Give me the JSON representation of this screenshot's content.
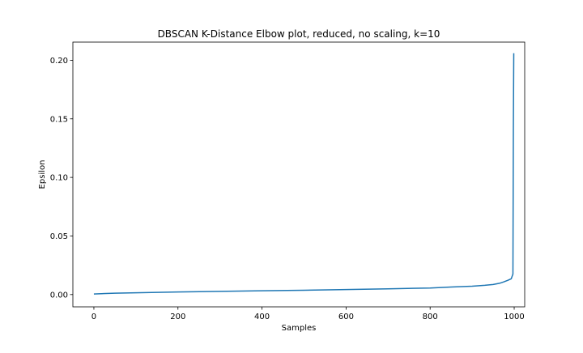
{
  "chart_data": {
    "type": "line",
    "title": "DBSCAN K-Distance Elbow plot, reduced, no scaling, k=10",
    "xlabel": "Samples",
    "ylabel": "Epsilon",
    "xlim": [
      -50,
      1025
    ],
    "ylim": [
      -0.0105,
      0.2155
    ],
    "xticks": [
      0,
      200,
      400,
      600,
      800,
      1000
    ],
    "xtick_labels": [
      "0",
      "200",
      "400",
      "600",
      "800",
      "1000"
    ],
    "yticks": [
      0.0,
      0.05,
      0.1,
      0.15,
      0.2
    ],
    "ytick_labels": [
      "0.00",
      "0.05",
      "0.10",
      "0.15",
      "0.20"
    ],
    "grid": false,
    "series": [
      {
        "color": "#1f77b4",
        "x": [
          0,
          50,
          100,
          200,
          300,
          400,
          500,
          600,
          700,
          800,
          850,
          900,
          930,
          950,
          965,
          975,
          985,
          993,
          997,
          998,
          999
        ],
        "y": [
          0.0005,
          0.0012,
          0.0015,
          0.0022,
          0.0027,
          0.0032,
          0.0037,
          0.0043,
          0.0049,
          0.0056,
          0.0064,
          0.0071,
          0.0079,
          0.0086,
          0.0096,
          0.0108,
          0.0122,
          0.0135,
          0.0175,
          0.14,
          0.206
        ]
      }
    ]
  }
}
